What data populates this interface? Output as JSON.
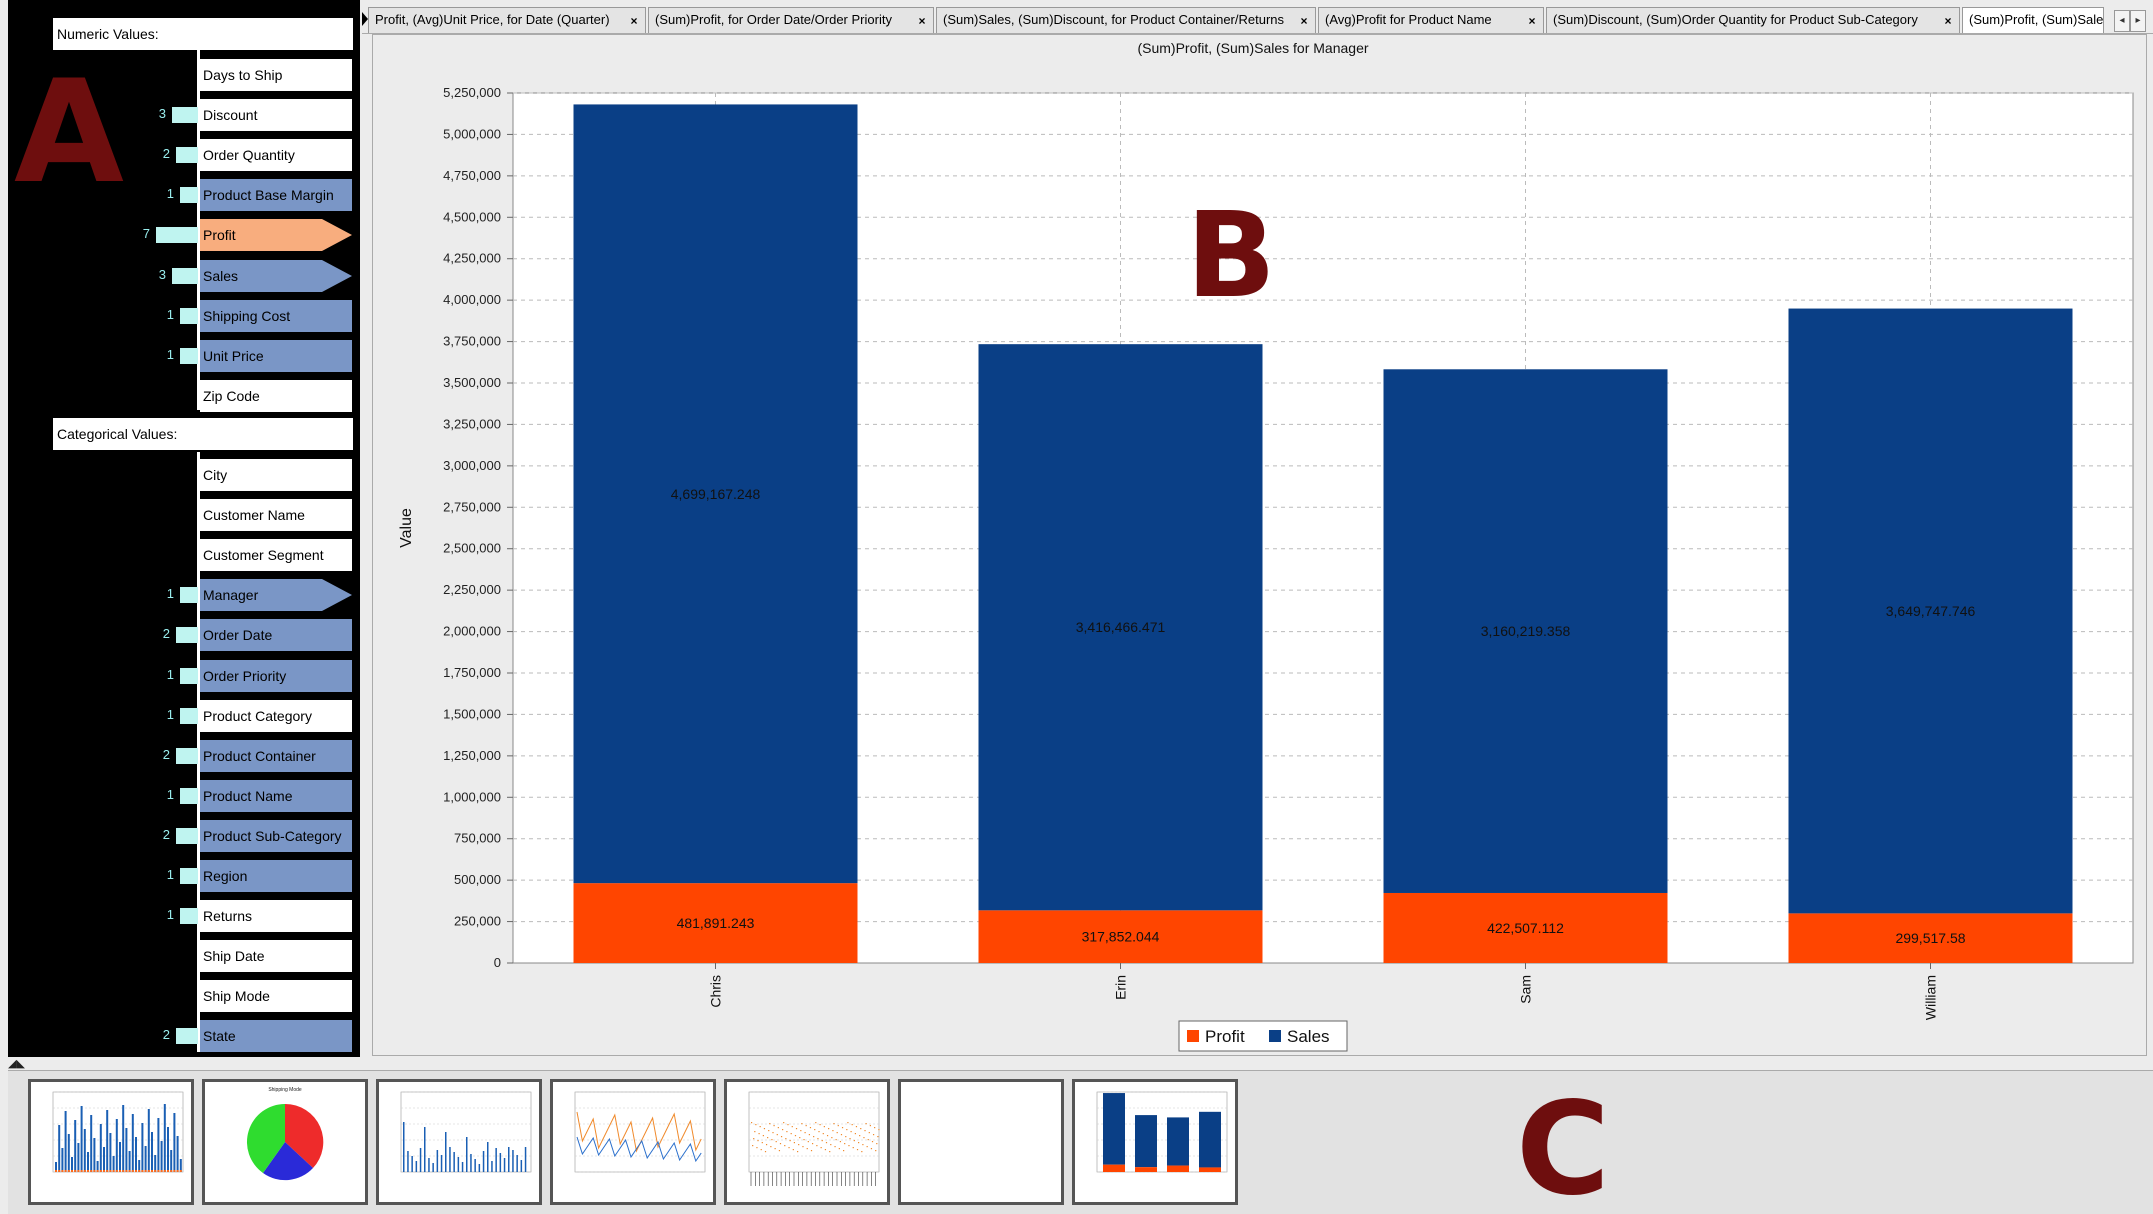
{
  "panel_labels": {
    "a": "A",
    "b": "B",
    "c": "C"
  },
  "left_panel": {
    "numeric_header": "Numeric Values:",
    "numeric_fields": [
      {
        "label": "Days to Ship",
        "count": "",
        "style": "white",
        "arrow": false
      },
      {
        "label": "Discount",
        "count": "3",
        "style": "white",
        "arrow": false
      },
      {
        "label": "Order Quantity",
        "count": "2",
        "style": "white",
        "arrow": false
      },
      {
        "label": "Product Base Margin",
        "count": "1",
        "style": "blue",
        "arrow": false
      },
      {
        "label": "Profit",
        "count": "7",
        "style": "orange",
        "arrow": true
      },
      {
        "label": "Sales",
        "count": "3",
        "style": "blue",
        "arrow": true
      },
      {
        "label": "Shipping Cost",
        "count": "1",
        "style": "blue",
        "arrow": false
      },
      {
        "label": "Unit Price",
        "count": "1",
        "style": "blue",
        "arrow": false
      },
      {
        "label": "Zip Code",
        "count": "",
        "style": "white",
        "arrow": false
      }
    ],
    "categorical_header": "Categorical Values:",
    "categorical_fields": [
      {
        "label": "City",
        "count": "",
        "style": "white",
        "arrow": false
      },
      {
        "label": "Customer Name",
        "count": "",
        "style": "white",
        "arrow": false
      },
      {
        "label": "Customer Segment",
        "count": "",
        "style": "white",
        "arrow": false
      },
      {
        "label": "Manager",
        "count": "1",
        "style": "blue",
        "arrow": true
      },
      {
        "label": "Order Date",
        "count": "2",
        "style": "blue",
        "arrow": false
      },
      {
        "label": "Order Priority",
        "count": "1",
        "style": "blue",
        "arrow": false
      },
      {
        "label": "Product Category",
        "count": "1",
        "style": "white",
        "arrow": false
      },
      {
        "label": "Product Container",
        "count": "2",
        "style": "blue",
        "arrow": false
      },
      {
        "label": "Product Name",
        "count": "1",
        "style": "blue",
        "arrow": false
      },
      {
        "label": "Product Sub-Category",
        "count": "2",
        "style": "blue",
        "arrow": false
      },
      {
        "label": "Region",
        "count": "1",
        "style": "blue",
        "arrow": false
      },
      {
        "label": "Returns",
        "count": "1",
        "style": "white",
        "arrow": false
      },
      {
        "label": "Ship Date",
        "count": "",
        "style": "white",
        "arrow": false
      },
      {
        "label": "Ship Mode",
        "count": "",
        "style": "white",
        "arrow": false
      },
      {
        "label": "State",
        "count": "2",
        "style": "blue",
        "arrow": false
      }
    ]
  },
  "tabs": [
    {
      "label": "Profit, (Avg)Unit Price, for Date (Quarter)",
      "active": false
    },
    {
      "label": "(Sum)Profit, for Order Date/Order Priority",
      "active": false
    },
    {
      "label": "(Sum)Sales, (Sum)Discount, for Product Container/Returns",
      "active": false
    },
    {
      "label": "(Avg)Profit for Product Name",
      "active": false
    },
    {
      "label": "(Sum)Discount, (Sum)Order Quantity for Product Sub-Category",
      "active": false
    },
    {
      "label": "(Sum)Profit, (Sum)Sale",
      "active": true
    }
  ],
  "tab_close_glyph": "×",
  "scroll_left_glyph": "◂",
  "scroll_right_glyph": "▸",
  "strip_collapse_glyph": "◢◣",
  "colors": {
    "profit": "#ff4500",
    "sales": "#0a3f86",
    "panel_letter": "#6e0e0e"
  },
  "chart_data": {
    "type": "bar",
    "stacked": true,
    "title": "(Sum)Profit, (Sum)Sales for Manager",
    "ylabel": "Value",
    "xlabel": "",
    "categories": [
      "Chris",
      "Erin",
      "Sam",
      "William"
    ],
    "series": [
      {
        "name": "Profit",
        "values": [
          481891.243,
          317852.044,
          422507.112,
          299517.58
        ],
        "labels": [
          "481,891.243",
          "317,852.044",
          "422,507.112",
          "299,517.58"
        ]
      },
      {
        "name": "Sales",
        "values": [
          4699167.248,
          3416466.471,
          3160219.358,
          3649747.746
        ],
        "labels": [
          "4,699,167.248",
          "3,416,466.471",
          "3,160,219.358",
          "3,649,747.746"
        ]
      }
    ],
    "ylim": [
      0,
      5250000
    ],
    "yticks": [
      0,
      250000,
      500000,
      750000,
      1000000,
      1250000,
      1500000,
      1750000,
      2000000,
      2250000,
      2500000,
      2750000,
      3000000,
      3250000,
      3500000,
      3750000,
      4000000,
      4250000,
      4500000,
      4750000,
      5000000,
      5250000
    ],
    "grid": true,
    "legend": "bottom-center"
  },
  "thumbnails": [
    {
      "name": "thumb-bar-date-quarter",
      "kind": "bars-dense"
    },
    {
      "name": "thumb-pie-shipping-mode",
      "kind": "pie",
      "title": "Shipping Mode"
    },
    {
      "name": "thumb-bar-product-container",
      "kind": "bars-sparse"
    },
    {
      "name": "thumb-line-product-name",
      "kind": "line"
    },
    {
      "name": "thumb-scatter-sub-category",
      "kind": "scatter"
    },
    {
      "name": "thumb-empty",
      "kind": "empty"
    },
    {
      "name": "thumb-current-manager",
      "kind": "stacked"
    }
  ]
}
